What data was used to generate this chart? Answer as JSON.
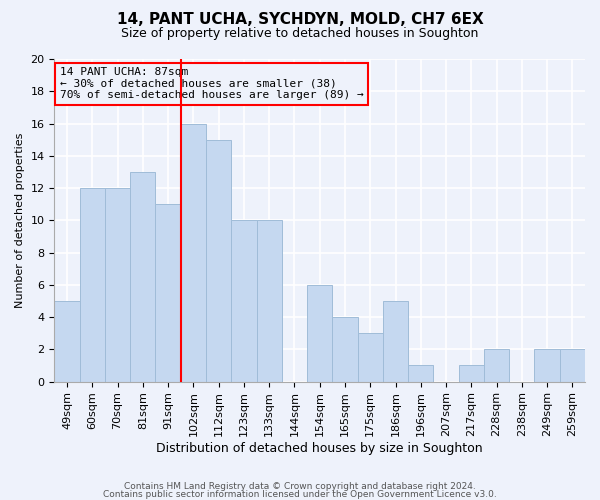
{
  "title": "14, PANT UCHA, SYCHDYN, MOLD, CH7 6EX",
  "subtitle": "Size of property relative to detached houses in Soughton",
  "xlabel": "Distribution of detached houses by size in Soughton",
  "ylabel": "Number of detached properties",
  "bar_labels": [
    "49sqm",
    "60sqm",
    "70sqm",
    "81sqm",
    "91sqm",
    "102sqm",
    "112sqm",
    "123sqm",
    "133sqm",
    "144sqm",
    "154sqm",
    "165sqm",
    "175sqm",
    "186sqm",
    "196sqm",
    "207sqm",
    "217sqm",
    "228sqm",
    "238sqm",
    "249sqm",
    "259sqm"
  ],
  "bar_values": [
    5,
    12,
    12,
    13,
    11,
    16,
    15,
    10,
    10,
    0,
    6,
    4,
    3,
    5,
    1,
    0,
    1,
    2,
    0,
    2,
    2
  ],
  "bar_color": "#c5d8f0",
  "bar_edge_color": "#a0bcd8",
  "vline_x": 4.5,
  "vline_color": "red",
  "annotation_title": "14 PANT UCHA: 87sqm",
  "annotation_line1": "← 30% of detached houses are smaller (38)",
  "annotation_line2": "70% of semi-detached houses are larger (89) →",
  "annotation_box_edge": "red",
  "ylim": [
    0,
    20
  ],
  "yticks": [
    0,
    2,
    4,
    6,
    8,
    10,
    12,
    14,
    16,
    18,
    20
  ],
  "footer1": "Contains HM Land Registry data © Crown copyright and database right 2024.",
  "footer2": "Contains public sector information licensed under the Open Government Licence v3.0.",
  "background_color": "#eef2fb",
  "grid_color": "#ffffff",
  "title_fontsize": 11,
  "subtitle_fontsize": 9,
  "ylabel_fontsize": 8,
  "xlabel_fontsize": 9,
  "tick_fontsize": 8,
  "annot_fontsize": 8
}
